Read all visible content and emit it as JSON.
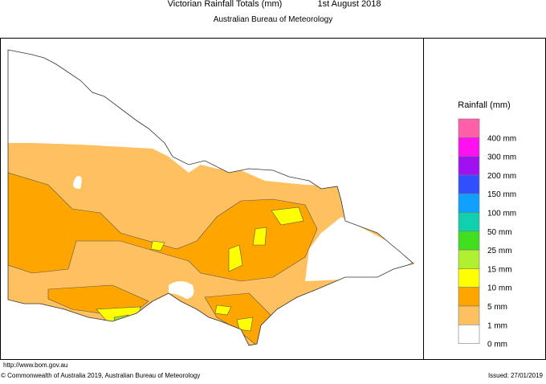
{
  "header": {
    "title": "Victorian Rainfall Totals (mm)",
    "date": "1st August 2018",
    "subtitle": "Australian Bureau of Meteorology"
  },
  "legend": {
    "title": "Rainfall (mm)",
    "colors": [
      "#ff5fa8",
      "#ff10f0",
      "#a010f0",
      "#3050ff",
      "#10a0ff",
      "#10d0b0",
      "#40e020",
      "#b0f030",
      "#ffff00",
      "#ffa500",
      "#ffc060",
      "#ffffff"
    ],
    "labels": [
      "400 mm",
      "300 mm",
      "200 mm",
      "150 mm",
      "100 mm",
      "50 mm",
      "25 mm",
      "15 mm",
      "10 mm",
      "5 mm",
      "1 mm",
      "0 mm"
    ]
  },
  "footer": {
    "url": "http://www.bom.gov.au",
    "copyright": "© Commonwealth of Australia 2019, Australian Bureau of Meteorology",
    "issued": "Issued: 27/01/2019"
  }
}
